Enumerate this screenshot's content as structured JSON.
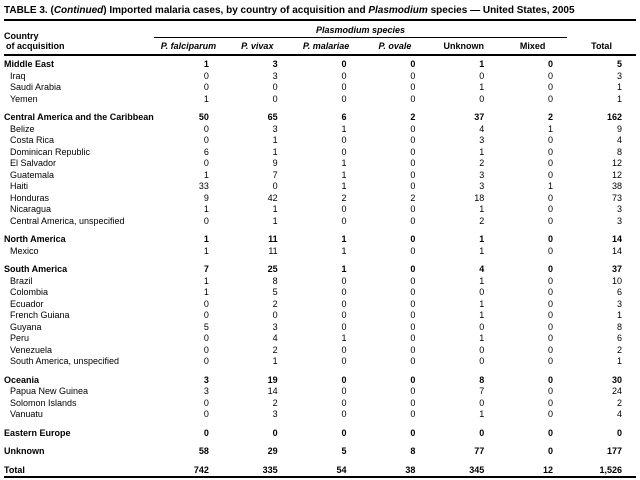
{
  "colors": {
    "text": "#000000",
    "background": "#ffffff",
    "rule": "#000000"
  },
  "title_parts": [
    {
      "text": "TABLE 3. (",
      "italic": false
    },
    {
      "text": "Continued",
      "italic": true
    },
    {
      "text": ") Imported malaria cases, by country of acquisition and ",
      "italic": false
    },
    {
      "text": "Plasmodium",
      "italic": true
    },
    {
      "text": " species — United States, 2005",
      "italic": false
    }
  ],
  "header": {
    "country_line1": "Country",
    "country_line2": "of acquisition",
    "species_group": "Plasmodium species",
    "columns": [
      {
        "label": "P. falciparum",
        "italic": true
      },
      {
        "label": "P. vivax",
        "italic": true
      },
      {
        "label": "P. malariae",
        "italic": true
      },
      {
        "label": "P. ovale",
        "italic": true
      },
      {
        "label": "Unknown",
        "italic": false
      },
      {
        "label": "Mixed",
        "italic": false
      },
      {
        "label": "Total",
        "italic": false
      }
    ]
  },
  "rows": [
    {
      "label": "Middle East",
      "indent": false,
      "bold": true,
      "gap": false,
      "values": [
        "1",
        "3",
        "0",
        "0",
        "1",
        "0",
        "5"
      ]
    },
    {
      "label": "Iraq",
      "indent": true,
      "bold": false,
      "gap": false,
      "values": [
        "0",
        "3",
        "0",
        "0",
        "0",
        "0",
        "3"
      ]
    },
    {
      "label": "Saudi Arabia",
      "indent": true,
      "bold": false,
      "gap": false,
      "values": [
        "0",
        "0",
        "0",
        "0",
        "1",
        "0",
        "1"
      ]
    },
    {
      "label": "Yemen",
      "indent": true,
      "bold": false,
      "gap": false,
      "values": [
        "1",
        "0",
        "0",
        "0",
        "0",
        "0",
        "1"
      ]
    },
    {
      "label": "Central America and the Caribbean",
      "indent": false,
      "bold": true,
      "gap": true,
      "values": [
        "50",
        "65",
        "6",
        "2",
        "37",
        "2",
        "162"
      ]
    },
    {
      "label": "Belize",
      "indent": true,
      "bold": false,
      "gap": false,
      "values": [
        "0",
        "3",
        "1",
        "0",
        "4",
        "1",
        "9"
      ]
    },
    {
      "label": "Costa Rica",
      "indent": true,
      "bold": false,
      "gap": false,
      "values": [
        "0",
        "1",
        "0",
        "0",
        "3",
        "0",
        "4"
      ]
    },
    {
      "label": "Dominican Republic",
      "indent": true,
      "bold": false,
      "gap": false,
      "values": [
        "6",
        "1",
        "0",
        "0",
        "1",
        "0",
        "8"
      ]
    },
    {
      "label": "El Salvador",
      "indent": true,
      "bold": false,
      "gap": false,
      "values": [
        "0",
        "9",
        "1",
        "0",
        "2",
        "0",
        "12"
      ]
    },
    {
      "label": "Guatemala",
      "indent": true,
      "bold": false,
      "gap": false,
      "values": [
        "1",
        "7",
        "1",
        "0",
        "3",
        "0",
        "12"
      ]
    },
    {
      "label": "Haiti",
      "indent": true,
      "bold": false,
      "gap": false,
      "values": [
        "33",
        "0",
        "1",
        "0",
        "3",
        "1",
        "38"
      ]
    },
    {
      "label": "Honduras",
      "indent": true,
      "bold": false,
      "gap": false,
      "values": [
        "9",
        "42",
        "2",
        "2",
        "18",
        "0",
        "73"
      ]
    },
    {
      "label": "Nicaragua",
      "indent": true,
      "bold": false,
      "gap": false,
      "values": [
        "1",
        "1",
        "0",
        "0",
        "1",
        "0",
        "3"
      ]
    },
    {
      "label": "Central America, unspecified",
      "indent": true,
      "bold": false,
      "gap": false,
      "values": [
        "0",
        "1",
        "0",
        "0",
        "2",
        "0",
        "3"
      ]
    },
    {
      "label": "North America",
      "indent": false,
      "bold": true,
      "gap": true,
      "values": [
        "1",
        "11",
        "1",
        "0",
        "1",
        "0",
        "14"
      ]
    },
    {
      "label": "Mexico",
      "indent": true,
      "bold": false,
      "gap": false,
      "values": [
        "1",
        "11",
        "1",
        "0",
        "1",
        "0",
        "14"
      ]
    },
    {
      "label": "South America",
      "indent": false,
      "bold": true,
      "gap": true,
      "values": [
        "7",
        "25",
        "1",
        "0",
        "4",
        "0",
        "37"
      ]
    },
    {
      "label": "Brazil",
      "indent": true,
      "bold": false,
      "gap": false,
      "values": [
        "1",
        "8",
        "0",
        "0",
        "1",
        "0",
        "10"
      ]
    },
    {
      "label": "Colombia",
      "indent": true,
      "bold": false,
      "gap": false,
      "values": [
        "1",
        "5",
        "0",
        "0",
        "0",
        "0",
        "6"
      ]
    },
    {
      "label": "Ecuador",
      "indent": true,
      "bold": false,
      "gap": false,
      "values": [
        "0",
        "2",
        "0",
        "0",
        "1",
        "0",
        "3"
      ]
    },
    {
      "label": "French Guiana",
      "indent": true,
      "bold": false,
      "gap": false,
      "values": [
        "0",
        "0",
        "0",
        "0",
        "1",
        "0",
        "1"
      ]
    },
    {
      "label": "Guyana",
      "indent": true,
      "bold": false,
      "gap": false,
      "values": [
        "5",
        "3",
        "0",
        "0",
        "0",
        "0",
        "8"
      ]
    },
    {
      "label": "Peru",
      "indent": true,
      "bold": false,
      "gap": false,
      "values": [
        "0",
        "4",
        "1",
        "0",
        "1",
        "0",
        "6"
      ]
    },
    {
      "label": "Venezuela",
      "indent": true,
      "bold": false,
      "gap": false,
      "values": [
        "0",
        "2",
        "0",
        "0",
        "0",
        "0",
        "2"
      ]
    },
    {
      "label": "South America, unspecified",
      "indent": true,
      "bold": false,
      "gap": false,
      "values": [
        "0",
        "1",
        "0",
        "0",
        "0",
        "0",
        "1"
      ]
    },
    {
      "label": "Oceania",
      "indent": false,
      "bold": true,
      "gap": true,
      "values": [
        "3",
        "19",
        "0",
        "0",
        "8",
        "0",
        "30"
      ]
    },
    {
      "label": "Papua New Guinea",
      "indent": true,
      "bold": false,
      "gap": false,
      "values": [
        "3",
        "14",
        "0",
        "0",
        "7",
        "0",
        "24"
      ]
    },
    {
      "label": "Solomon Islands",
      "indent": true,
      "bold": false,
      "gap": false,
      "values": [
        "0",
        "2",
        "0",
        "0",
        "0",
        "0",
        "2"
      ]
    },
    {
      "label": "Vanuatu",
      "indent": true,
      "bold": false,
      "gap": false,
      "values": [
        "0",
        "3",
        "0",
        "0",
        "1",
        "0",
        "4"
      ]
    },
    {
      "label": "Eastern Europe",
      "indent": false,
      "bold": true,
      "gap": true,
      "values": [
        "0",
        "0",
        "0",
        "0",
        "0",
        "0",
        "0"
      ]
    },
    {
      "label": "Unknown",
      "indent": false,
      "bold": true,
      "gap": true,
      "values": [
        "58",
        "29",
        "5",
        "8",
        "77",
        "0",
        "177"
      ]
    },
    {
      "label": "Total",
      "indent": false,
      "bold": true,
      "gap": true,
      "values": [
        "742",
        "335",
        "54",
        "38",
        "345",
        "12",
        "1,526"
      ]
    }
  ]
}
